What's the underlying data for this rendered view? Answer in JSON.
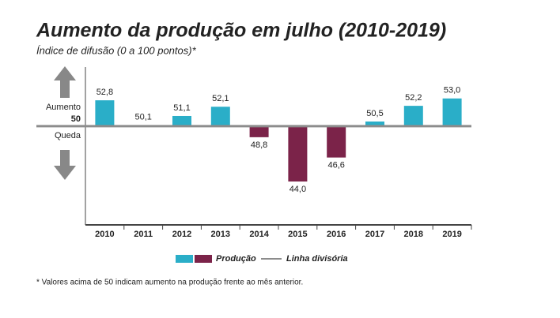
{
  "chart_data": {
    "type": "bar",
    "title": "Aumento da produção em julho (2010-2019)",
    "subtitle": "Índice de difusão (0 a 100 pontos)*",
    "categories": [
      "2010",
      "2011",
      "2012",
      "2013",
      "2014",
      "2015",
      "2016",
      "2017",
      "2018",
      "2019"
    ],
    "series": [
      {
        "name": "Produção",
        "color": "#2aaec8",
        "color_negative": "#7b2349",
        "values": [
          52.8,
          50.1,
          51.1,
          52.1,
          48.8,
          44.0,
          46.6,
          50.5,
          52.2,
          53.0
        ],
        "value_labels": [
          "52,8",
          "50,1",
          "51,1",
          "52,1",
          "48,8",
          "44,0",
          "46,6",
          "50,5",
          "52,2",
          "53,0"
        ]
      }
    ],
    "baseline": {
      "name": "Linha divisória",
      "color": "#8c8c8c"
    },
    "ylim": [
      39.3,
      56.4
    ],
    "yticks": [
      50
    ],
    "annotations": {
      "above": "Aumento",
      "below": "Queda"
    },
    "footnote": "* Valores acima de 50 indicam aumento na produção frente ao mês anterior."
  }
}
